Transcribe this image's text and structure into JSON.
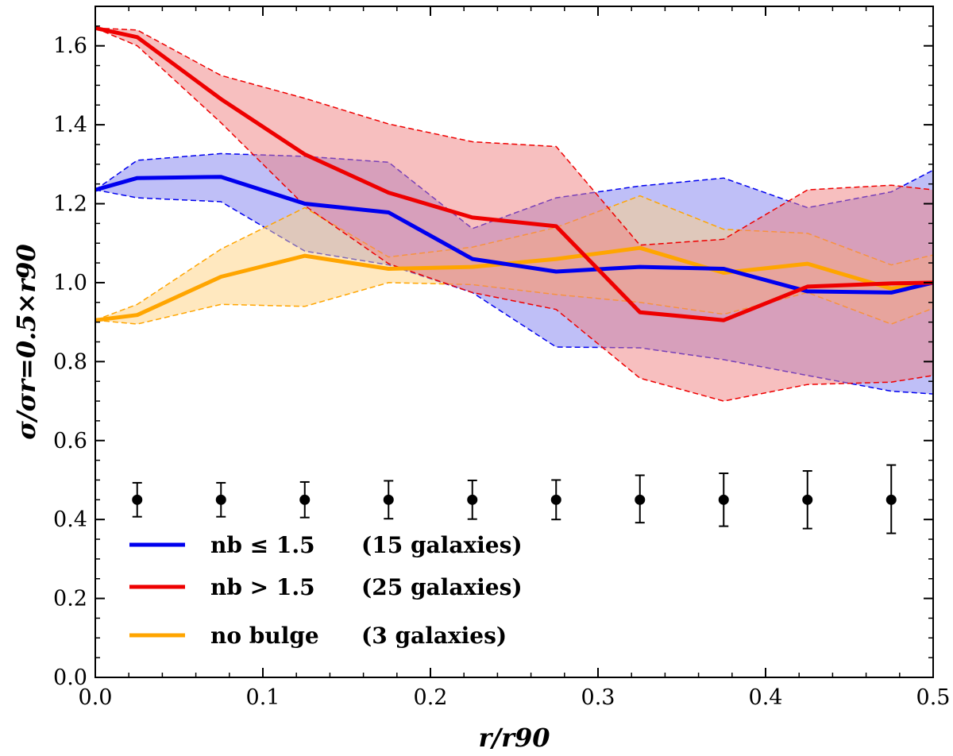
{
  "chart_data": {
    "type": "line",
    "title": "",
    "xlabel": "r/r90",
    "ylabel": "σ/σr=0.5×r90",
    "xlim": [
      0.0,
      0.5
    ],
    "ylim": [
      0.0,
      1.7
    ],
    "x_ticks": [
      "0.0",
      "0.1",
      "0.2",
      "0.3",
      "0.4",
      "0.5"
    ],
    "y_ticks": [
      "0.0",
      "0.2",
      "0.4",
      "0.6",
      "0.8",
      "1.0",
      "1.2",
      "1.4",
      "1.6"
    ],
    "grid": false,
    "legend_position": "bottom-left",
    "series": [
      {
        "name": "n_b ≤ 1.5",
        "legend_label": "nb ≤ 1.5",
        "count_label": "(15 galaxies)",
        "color": "#0000ee",
        "fill_color": "#8080f0",
        "x": [
          0.0,
          0.025,
          0.075,
          0.125,
          0.175,
          0.225,
          0.275,
          0.325,
          0.375,
          0.425,
          0.475,
          0.5
        ],
        "values": [
          1.235,
          1.265,
          1.268,
          1.2,
          1.178,
          1.06,
          1.028,
          1.04,
          1.035,
          0.978,
          0.975,
          1.0
        ],
        "upper": [
          1.235,
          1.31,
          1.327,
          1.32,
          1.305,
          1.137,
          1.215,
          1.245,
          1.265,
          1.19,
          1.23,
          1.285
        ],
        "lower": [
          1.235,
          1.215,
          1.205,
          1.08,
          1.045,
          0.975,
          0.837,
          0.835,
          0.805,
          0.765,
          0.725,
          0.718
        ]
      },
      {
        "name": "n_b > 1.5",
        "legend_label": "nb > 1.5",
        "count_label": "(25 galaxies)",
        "color": "#ee0000",
        "fill_color": "#f08080",
        "x": [
          0.0,
          0.025,
          0.075,
          0.125,
          0.175,
          0.225,
          0.275,
          0.325,
          0.375,
          0.425,
          0.475,
          0.5
        ],
        "values": [
          1.645,
          1.622,
          1.465,
          1.325,
          1.228,
          1.165,
          1.143,
          0.925,
          0.905,
          0.99,
          0.998,
          1.0
        ],
        "upper": [
          1.645,
          1.64,
          1.525,
          1.467,
          1.402,
          1.357,
          1.345,
          1.095,
          1.11,
          1.235,
          1.247,
          1.235
        ],
        "lower": [
          1.645,
          1.6,
          1.405,
          1.195,
          1.048,
          0.975,
          0.932,
          0.758,
          0.7,
          0.742,
          0.748,
          0.765
        ]
      },
      {
        "name": "no bulge",
        "legend_label": "no bulge",
        "count_label": "(3 galaxies)",
        "color": "#ffa500",
        "fill_color": "#ffd27f",
        "x": [
          0.0,
          0.025,
          0.075,
          0.125,
          0.175,
          0.225,
          0.275,
          0.325,
          0.375,
          0.425,
          0.475,
          0.5
        ],
        "values": [
          0.905,
          0.918,
          1.015,
          1.068,
          1.035,
          1.04,
          1.06,
          1.088,
          1.025,
          1.048,
          0.985,
          1.0
        ],
        "upper": [
          0.905,
          0.945,
          1.085,
          1.19,
          1.065,
          1.09,
          1.14,
          1.22,
          1.135,
          1.125,
          1.045,
          1.07
        ],
        "lower": [
          0.905,
          0.895,
          0.945,
          0.94,
          1.0,
          0.995,
          0.97,
          0.95,
          0.92,
          0.975,
          0.895,
          0.935
        ]
      }
    ],
    "error_points": {
      "x": [
        0.025,
        0.075,
        0.125,
        0.175,
        0.225,
        0.275,
        0.325,
        0.375,
        0.425,
        0.475
      ],
      "y": [
        0.45,
        0.45,
        0.45,
        0.45,
        0.45,
        0.45,
        0.45,
        0.45,
        0.45,
        0.45
      ],
      "err_low": [
        0.043,
        0.043,
        0.045,
        0.048,
        0.049,
        0.05,
        0.058,
        0.067,
        0.073,
        0.085
      ],
      "err_high": [
        0.043,
        0.043,
        0.045,
        0.048,
        0.049,
        0.05,
        0.062,
        0.067,
        0.073,
        0.088
      ]
    }
  }
}
